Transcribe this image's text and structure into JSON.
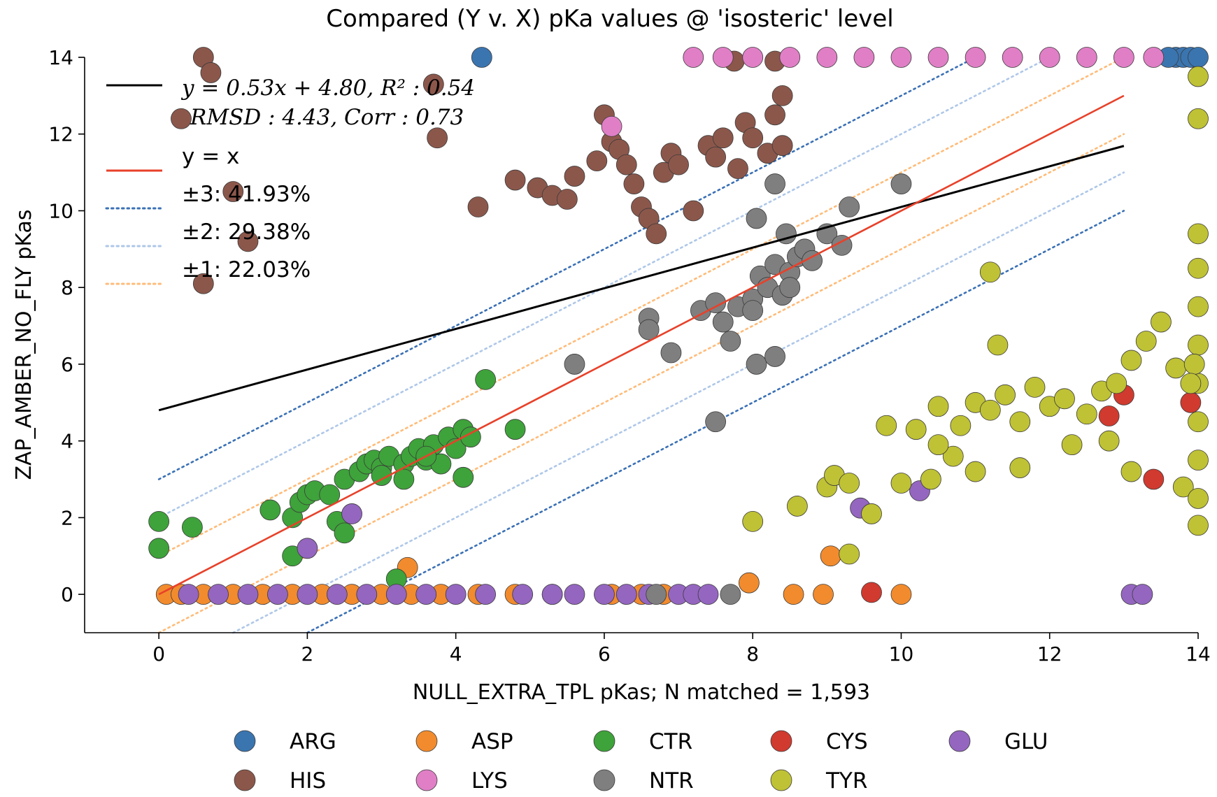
{
  "chart_data": {
    "type": "scatter",
    "title": "Compared (Y v. X) pKa values @ 'isosteric' level",
    "xlabel": "NULL_EXTRA_TPL pKas; N matched = 1,593",
    "ylabel": "ZAP_AMBER_NO_FLY pKas",
    "xlim": [
      -1,
      14
    ],
    "ylim": [
      -1,
      14
    ],
    "x_ticks": [
      "0",
      "2",
      "4",
      "6",
      "8",
      "10",
      "12",
      "14"
    ],
    "y_ticks": [
      "0",
      "2",
      "4",
      "6",
      "8",
      "10",
      "12",
      "14"
    ],
    "grid": false,
    "colors": {
      "ARG": "#3a75b0",
      "ASP": "#f28b2d",
      "CTR": "#3ea33a",
      "CYS": "#d13a2f",
      "GLU": "#9466c0",
      "HIS": "#8c574b",
      "LYS": "#e07fc6",
      "NTR": "#7f7f7f",
      "TYR": "#bfc234"
    },
    "annotations": {
      "fit_text_1": "y = 0.53x + 4.80, R² : 0.54",
      "fit_text_2": "RMSD : 4.43, Corr : 0.73",
      "identity_label": "y = x",
      "band3_label": "±3:   41.93%",
      "band2_label": "±2:   29.38%",
      "band1_label": "±1:   22.03%"
    },
    "lines": {
      "fit": {
        "slope": 0.53,
        "intercept": 4.8,
        "x_range": [
          0,
          13
        ],
        "color": "#000000"
      },
      "identity": {
        "x_range": [
          0,
          13
        ],
        "color": "#e8412a"
      },
      "bands": [
        {
          "offset": 3,
          "color": "#3a70b5",
          "x_range": [
            0,
            13
          ]
        },
        {
          "offset": 2,
          "color": "#aec7e8",
          "x_range": [
            0,
            13
          ]
        },
        {
          "offset": 1,
          "color": "#ffbb78",
          "x_range": [
            0,
            13
          ]
        }
      ]
    },
    "legend_entries": [
      "ARG",
      "ASP",
      "CTR",
      "CYS",
      "GLU",
      "HIS",
      "LYS",
      "NTR",
      "TYR"
    ],
    "legend_placement": "bottom",
    "series": [
      {
        "name": "ARG",
        "points": [
          [
            4.35,
            14
          ],
          [
            13.7,
            14
          ],
          [
            13.8,
            14
          ],
          [
            13.9,
            14
          ],
          [
            14,
            14
          ],
          [
            13.6,
            14
          ]
        ]
      },
      {
        "name": "ASP",
        "points": [
          [
            3.35,
            0.7
          ],
          [
            7.95,
            0.3
          ],
          [
            9.05,
            1.0
          ],
          [
            8.55,
            0
          ],
          [
            8.95,
            0
          ],
          [
            10.0,
            0
          ],
          [
            0.1,
            0
          ],
          [
            0.3,
            0
          ],
          [
            0.6,
            0
          ],
          [
            1.0,
            0
          ],
          [
            1.4,
            0
          ],
          [
            1.8,
            0
          ],
          [
            2.2,
            0
          ],
          [
            2.6,
            0
          ],
          [
            3.0,
            0
          ],
          [
            3.4,
            0
          ],
          [
            3.8,
            0
          ],
          [
            4.3,
            0
          ],
          [
            4.8,
            0
          ],
          [
            5.3,
            0
          ],
          [
            6.1,
            0
          ],
          [
            6.5,
            0
          ],
          [
            6.8,
            0
          ]
        ]
      },
      {
        "name": "CTR",
        "points": [
          [
            0,
            1.9
          ],
          [
            0,
            1.2
          ],
          [
            0.45,
            1.75
          ],
          [
            1.5,
            2.2
          ],
          [
            1.8,
            2.0
          ],
          [
            1.9,
            2.4
          ],
          [
            2.0,
            2.6
          ],
          [
            2.1,
            2.7
          ],
          [
            2.3,
            2.6
          ],
          [
            2.5,
            3.0
          ],
          [
            2.7,
            3.2
          ],
          [
            2.8,
            3.4
          ],
          [
            2.9,
            3.5
          ],
          [
            3.0,
            3.3
          ],
          [
            3.1,
            3.6
          ],
          [
            3.3,
            3.4
          ],
          [
            3.4,
            3.6
          ],
          [
            3.5,
            3.8
          ],
          [
            3.6,
            3.5
          ],
          [
            3.7,
            3.9
          ],
          [
            3.8,
            3.4
          ],
          [
            3.9,
            4.1
          ],
          [
            4.0,
            3.8
          ],
          [
            4.1,
            4.3
          ],
          [
            4.2,
            4.1
          ],
          [
            4.4,
            5.6
          ],
          [
            4.8,
            4.3
          ],
          [
            3.0,
            3.1
          ],
          [
            3.3,
            3.0
          ],
          [
            4.1,
            3.05
          ],
          [
            2.4,
            1.9
          ],
          [
            2.5,
            1.6
          ],
          [
            1.8,
            1.0
          ],
          [
            3.2,
            0.4
          ],
          [
            3.6,
            3.6
          ]
        ]
      },
      {
        "name": "CYS",
        "points": [
          [
            9.6,
            0.05
          ],
          [
            12.8,
            4.65
          ],
          [
            13.4,
            3.0
          ],
          [
            13.0,
            5.2
          ],
          [
            13.9,
            5.0
          ]
        ]
      },
      {
        "name": "GLU",
        "points": [
          [
            0.4,
            0
          ],
          [
            0.8,
            0
          ],
          [
            1.2,
            0
          ],
          [
            1.6,
            0
          ],
          [
            2.0,
            0
          ],
          [
            2.4,
            0
          ],
          [
            2.8,
            0
          ],
          [
            3.2,
            0
          ],
          [
            3.6,
            0
          ],
          [
            4.0,
            0
          ],
          [
            4.4,
            0
          ],
          [
            4.9,
            0
          ],
          [
            5.3,
            0
          ],
          [
            5.6,
            0
          ],
          [
            6.0,
            0
          ],
          [
            6.3,
            0
          ],
          [
            6.6,
            0
          ],
          [
            7.0,
            0
          ],
          [
            7.2,
            0
          ],
          [
            7.4,
            0
          ],
          [
            2.0,
            1.2
          ],
          [
            2.6,
            2.1
          ],
          [
            9.45,
            2.25
          ],
          [
            10.25,
            2.7
          ],
          [
            13.1,
            0
          ],
          [
            13.25,
            0
          ]
        ]
      },
      {
        "name": "HIS",
        "points": [
          [
            0.6,
            14
          ],
          [
            0.7,
            13.6
          ],
          [
            0.3,
            12.4
          ],
          [
            1.0,
            10.5
          ],
          [
            1.2,
            9.2
          ],
          [
            0.6,
            8.1
          ],
          [
            3.7,
            13.3
          ],
          [
            3.75,
            11.9
          ],
          [
            4.3,
            10.1
          ],
          [
            4.8,
            10.8
          ],
          [
            5.1,
            10.6
          ],
          [
            5.3,
            10.4
          ],
          [
            5.5,
            10.3
          ],
          [
            5.6,
            10.9
          ],
          [
            5.9,
            11.3
          ],
          [
            6.0,
            12.5
          ],
          [
            6.1,
            11.8
          ],
          [
            6.2,
            11.6
          ],
          [
            6.3,
            11.2
          ],
          [
            6.4,
            10.7
          ],
          [
            6.5,
            10.1
          ],
          [
            6.6,
            9.8
          ],
          [
            6.7,
            9.4
          ],
          [
            6.8,
            11.0
          ],
          [
            6.9,
            11.5
          ],
          [
            7.0,
            11.2
          ],
          [
            7.2,
            10.0
          ],
          [
            7.4,
            11.7
          ],
          [
            7.5,
            11.4
          ],
          [
            7.6,
            11.9
          ],
          [
            7.8,
            11.1
          ],
          [
            7.9,
            12.3
          ],
          [
            8.0,
            11.9
          ],
          [
            8.2,
            11.5
          ],
          [
            8.4,
            11.7
          ],
          [
            8.3,
            12.5
          ],
          [
            8.4,
            13.0
          ],
          [
            7.75,
            13.9
          ],
          [
            8.3,
            13.9
          ]
        ]
      },
      {
        "name": "LYS",
        "points": [
          [
            6.1,
            12.2
          ],
          [
            7.2,
            14
          ],
          [
            7.6,
            14
          ],
          [
            8.0,
            14
          ],
          [
            8.5,
            14
          ],
          [
            9.0,
            14
          ],
          [
            9.5,
            14
          ],
          [
            10.0,
            14
          ],
          [
            10.5,
            14
          ],
          [
            11.0,
            14
          ],
          [
            11.5,
            14
          ],
          [
            12.0,
            14
          ],
          [
            12.5,
            14
          ],
          [
            13.0,
            14
          ],
          [
            13.4,
            14
          ]
        ]
      },
      {
        "name": "NTR",
        "points": [
          [
            5.6,
            6.0
          ],
          [
            6.7,
            0
          ],
          [
            7.7,
            0
          ],
          [
            6.6,
            7.2
          ],
          [
            6.6,
            6.9
          ],
          [
            6.9,
            6.3
          ],
          [
            7.3,
            7.4
          ],
          [
            7.5,
            7.6
          ],
          [
            7.6,
            7.1
          ],
          [
            7.7,
            6.6
          ],
          [
            7.8,
            7.5
          ],
          [
            8.0,
            7.7
          ],
          [
            8.1,
            8.3
          ],
          [
            8.2,
            8.0
          ],
          [
            8.3,
            8.6
          ],
          [
            8.4,
            7.8
          ],
          [
            8.5,
            8.4
          ],
          [
            8.6,
            8.8
          ],
          [
            8.7,
            9.0
          ],
          [
            8.8,
            8.7
          ],
          [
            9.0,
            9.4
          ],
          [
            9.2,
            9.1
          ],
          [
            9.3,
            10.1
          ],
          [
            8.3,
            10.7
          ],
          [
            8.05,
            9.8
          ],
          [
            8.45,
            9.4
          ],
          [
            10.0,
            10.7
          ],
          [
            8.05,
            6.0
          ],
          [
            8.3,
            6.2
          ],
          [
            7.5,
            4.5
          ],
          [
            8.0,
            7.4
          ],
          [
            8.5,
            8.0
          ]
        ]
      },
      {
        "name": "TYR",
        "points": [
          [
            8.0,
            1.9
          ],
          [
            8.6,
            2.3
          ],
          [
            9.0,
            2.8
          ],
          [
            9.1,
            3.1
          ],
          [
            9.3,
            2.9
          ],
          [
            9.6,
            2.1
          ],
          [
            9.3,
            1.05
          ],
          [
            10.0,
            2.9
          ],
          [
            10.2,
            4.3
          ],
          [
            10.5,
            4.9
          ],
          [
            10.8,
            4.4
          ],
          [
            11.0,
            5.0
          ],
          [
            11.2,
            4.8
          ],
          [
            11.4,
            5.2
          ],
          [
            11.6,
            4.5
          ],
          [
            11.8,
            5.4
          ],
          [
            12.0,
            4.9
          ],
          [
            12.2,
            5.1
          ],
          [
            12.5,
            4.7
          ],
          [
            12.7,
            5.3
          ],
          [
            12.9,
            5.5
          ],
          [
            13.1,
            6.1
          ],
          [
            13.3,
            6.6
          ],
          [
            13.5,
            7.1
          ],
          [
            13.7,
            5.9
          ],
          [
            11.3,
            6.5
          ],
          [
            11.2,
            8.4
          ],
          [
            10.4,
            3.0
          ],
          [
            11.0,
            3.2
          ],
          [
            10.7,
            3.6
          ],
          [
            11.6,
            3.3
          ],
          [
            12.3,
            3.9
          ],
          [
            12.8,
            4.0
          ],
          [
            13.1,
            3.2
          ],
          [
            13.8,
            2.8
          ],
          [
            10.5,
            3.9
          ],
          [
            9.8,
            4.4
          ],
          [
            14,
            1.8
          ],
          [
            14,
            2.5
          ],
          [
            14,
            3.5
          ],
          [
            14,
            4.5
          ],
          [
            14,
            5.5
          ],
          [
            14,
            6.5
          ],
          [
            14,
            7.5
          ],
          [
            14,
            8.5
          ],
          [
            14,
            9.4
          ],
          [
            14,
            12.4
          ],
          [
            14,
            13.5
          ],
          [
            13.95,
            6.0
          ],
          [
            13.9,
            5.5
          ]
        ]
      }
    ]
  }
}
